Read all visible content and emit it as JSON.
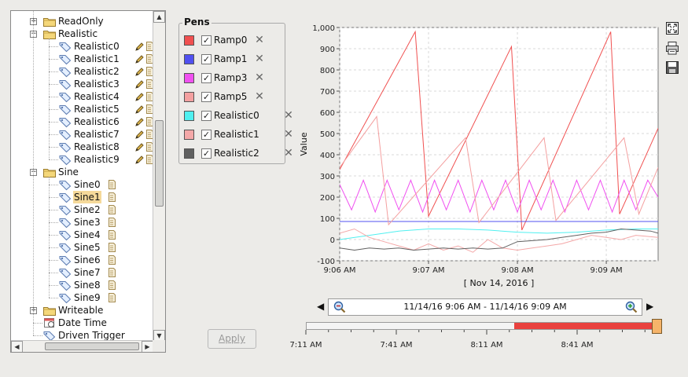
{
  "tree": {
    "items": [
      {
        "label": "ReadOnly",
        "type": "folder",
        "expanded": false,
        "level": 1
      },
      {
        "label": "Realistic",
        "type": "folder",
        "expanded": true,
        "level": 1
      },
      {
        "label": "Realistic0",
        "type": "tag",
        "level": 2
      },
      {
        "label": "Realistic1",
        "type": "tag",
        "level": 2
      },
      {
        "label": "Realistic2",
        "type": "tag",
        "level": 2
      },
      {
        "label": "Realistic3",
        "type": "tag",
        "level": 2
      },
      {
        "label": "Realistic4",
        "type": "tag",
        "level": 2
      },
      {
        "label": "Realistic5",
        "type": "tag",
        "level": 2
      },
      {
        "label": "Realistic6",
        "type": "tag",
        "level": 2
      },
      {
        "label": "Realistic7",
        "type": "tag",
        "level": 2
      },
      {
        "label": "Realistic8",
        "type": "tag",
        "level": 2
      },
      {
        "label": "Realistic9",
        "type": "tag",
        "level": 2
      },
      {
        "label": "Sine",
        "type": "folder",
        "expanded": true,
        "level": 1
      },
      {
        "label": "Sine0",
        "type": "tag",
        "level": 2
      },
      {
        "label": "Sine1",
        "type": "tag",
        "level": 2,
        "selected": true
      },
      {
        "label": "Sine2",
        "type": "tag",
        "level": 2
      },
      {
        "label": "Sine3",
        "type": "tag",
        "level": 2
      },
      {
        "label": "Sine4",
        "type": "tag",
        "level": 2
      },
      {
        "label": "Sine5",
        "type": "tag",
        "level": 2
      },
      {
        "label": "Sine6",
        "type": "tag",
        "level": 2
      },
      {
        "label": "Sine7",
        "type": "tag",
        "level": 2
      },
      {
        "label": "Sine8",
        "type": "tag",
        "level": 2
      },
      {
        "label": "Sine9",
        "type": "tag",
        "level": 2
      },
      {
        "label": "Writeable",
        "type": "folder",
        "expanded": false,
        "level": 1
      },
      {
        "label": "Date Time",
        "type": "datetime",
        "level": 1
      },
      {
        "label": "Driven Trigger",
        "type": "tag",
        "level": 1
      }
    ]
  },
  "pens": {
    "title": "Pens",
    "items": [
      {
        "name": "Ramp0",
        "color": "#f05050",
        "checked": true
      },
      {
        "name": "Ramp1",
        "color": "#5050f0",
        "checked": true
      },
      {
        "name": "Ramp3",
        "color": "#f050f0",
        "checked": true
      },
      {
        "name": "Ramp5",
        "color": "#f4a0a0",
        "checked": true
      },
      {
        "name": "Realistic0",
        "color": "#50f0f0",
        "checked": true
      },
      {
        "name": "Realistic1",
        "color": "#f4a8a8",
        "checked": true
      },
      {
        "name": "Realistic2",
        "color": "#606060",
        "checked": true
      }
    ]
  },
  "apply_label": "Apply",
  "icons": {
    "fit": "fit-to-screen-icon",
    "print": "print-icon",
    "save": "save-icon"
  },
  "chart_data": {
    "type": "line",
    "ylabel": "Value",
    "xlabel": "[ Nov 14, 2016 ]",
    "ylim": [
      -100,
      1000
    ],
    "xlim": [
      0,
      215
    ],
    "x_unit": "seconds from 9:06 AM",
    "yticks": [
      "1,000",
      "900",
      "800",
      "700",
      "600",
      "500",
      "400",
      "300",
      "200",
      "100",
      "0",
      "-100"
    ],
    "ytick_values": [
      1000,
      900,
      800,
      700,
      600,
      500,
      400,
      300,
      200,
      100,
      0,
      -100
    ],
    "xticks": [
      "9:06 AM",
      "9:07 AM",
      "9:08 AM",
      "9:09 AM"
    ],
    "xtick_values": [
      0,
      60,
      120,
      180
    ],
    "grid": true,
    "series": [
      {
        "name": "Ramp0",
        "color": "#f05050",
        "x": [
          0,
          51,
          60,
          116,
          123,
          183,
          189,
          215
        ],
        "y": [
          330,
          980,
          110,
          910,
          45,
          980,
          120,
          525
        ]
      },
      {
        "name": "Ramp1",
        "color": "#5050f0",
        "x": [
          0,
          215
        ],
        "y": [
          85,
          85
        ]
      },
      {
        "name": "Ramp3",
        "color": "#f050f0",
        "x": [
          0,
          8,
          16,
          24,
          32,
          40,
          48,
          56,
          64,
          72,
          80,
          88,
          96,
          104,
          112,
          120,
          128,
          136,
          144,
          152,
          160,
          168,
          176,
          184,
          192,
          200,
          208,
          215
        ],
        "y": [
          260,
          140,
          280,
          130,
          280,
          140,
          280,
          130,
          280,
          140,
          280,
          130,
          280,
          140,
          280,
          130,
          280,
          140,
          280,
          130,
          280,
          140,
          280,
          130,
          280,
          140,
          280,
          200
        ]
      },
      {
        "name": "Ramp5",
        "color": "#f4a0a0",
        "x": [
          0,
          25,
          33,
          85,
          94,
          138,
          146,
          192,
          202,
          215
        ],
        "y": [
          340,
          580,
          70,
          480,
          80,
          480,
          90,
          480,
          120,
          340
        ]
      },
      {
        "name": "Realistic0",
        "color": "#50f0f0",
        "x": [
          0,
          20,
          40,
          60,
          80,
          100,
          120,
          140,
          160,
          180,
          200,
          215
        ],
        "y": [
          0,
          20,
          40,
          50,
          50,
          45,
          35,
          30,
          35,
          45,
          50,
          50
        ]
      },
      {
        "name": "Realistic1",
        "color": "#f4a8a8",
        "x": [
          0,
          10,
          20,
          30,
          40,
          50,
          60,
          70,
          80,
          90,
          100,
          110,
          120,
          130,
          140,
          150,
          160,
          170,
          180,
          190,
          200,
          215
        ],
        "y": [
          30,
          50,
          10,
          -10,
          -30,
          -50,
          -20,
          -50,
          -30,
          -60,
          0,
          -40,
          -50,
          -40,
          -30,
          -20,
          0,
          20,
          10,
          0,
          20,
          10
        ]
      },
      {
        "name": "Realistic2",
        "color": "#606060",
        "x": [
          0,
          10,
          20,
          30,
          40,
          50,
          60,
          70,
          80,
          90,
          100,
          110,
          120,
          130,
          140,
          150,
          160,
          170,
          180,
          190,
          200,
          210,
          215
        ],
        "y": [
          -40,
          -50,
          -40,
          -45,
          -40,
          -50,
          -45,
          -40,
          -45,
          -40,
          -45,
          -40,
          -10,
          -5,
          0,
          10,
          20,
          30,
          35,
          50,
          45,
          40,
          30
        ]
      }
    ]
  },
  "range": {
    "text": "11/14/16 9:06 AM - 11/14/16 9:09 AM",
    "selected_start_fraction": 0.6,
    "selected_end_fraction": 1.0
  },
  "slider_ticks": [
    "7:11 AM",
    "7:41 AM",
    "8:11 AM",
    "8:41 AM"
  ]
}
